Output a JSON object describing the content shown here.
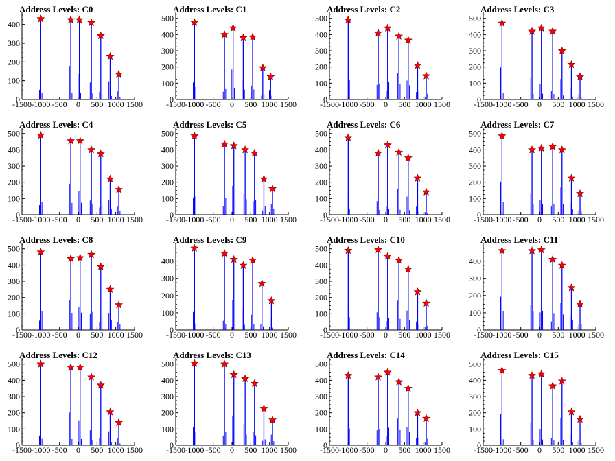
{
  "chart_data": {
    "type": "histogram",
    "xlim": [
      -1500,
      1500
    ],
    "x_ticks": [
      -1500,
      -1000,
      -500,
      0,
      500,
      1000,
      1500
    ],
    "colors": {
      "bars": "#0000ff",
      "markers": "#ff0000",
      "axis": "#000000"
    },
    "marker": "red-star",
    "panels": [
      {
        "title": "Address Levels: C0",
        "ylim": [
          0,
          450
        ],
        "y_ticks": [
          0,
          100,
          200,
          300,
          400
        ],
        "peaks_x": [
          -1000,
          -200,
          30,
          350,
          600,
          850,
          1080
        ],
        "peaks_y": [
          430,
          425,
          425,
          410,
          340,
          230,
          135
        ]
      },
      {
        "title": "Address Levels: C1",
        "ylim": [
          0,
          520
        ],
        "y_ticks": [
          0,
          100,
          200,
          300,
          400,
          500
        ],
        "peaks_x": [
          -1000,
          -200,
          30,
          300,
          550,
          820,
          1030
        ],
        "peaks_y": [
          475,
          400,
          440,
          380,
          385,
          195,
          140
        ]
      },
      {
        "title": "Address Levels: C2",
        "ylim": [
          0,
          520
        ],
        "y_ticks": [
          0,
          100,
          200,
          300,
          400,
          500
        ],
        "peaks_x": [
          -1000,
          -200,
          50,
          350,
          600,
          850,
          1080
        ],
        "peaks_y": [
          490,
          410,
          440,
          390,
          365,
          210,
          145
        ]
      },
      {
        "title": "Address Levels: C3",
        "ylim": [
          0,
          520
        ],
        "y_ticks": [
          0,
          100,
          200,
          300,
          400,
          500
        ],
        "peaks_x": [
          -1000,
          -200,
          50,
          350,
          600,
          850,
          1080
        ],
        "peaks_y": [
          470,
          420,
          440,
          420,
          300,
          215,
          140
        ]
      },
      {
        "title": "Address Levels: C4",
        "ylim": [
          0,
          520
        ],
        "y_ticks": [
          0,
          100,
          200,
          300,
          400,
          500
        ],
        "peaks_x": [
          -1000,
          -200,
          50,
          350,
          600,
          850,
          1080
        ],
        "peaks_y": [
          490,
          455,
          455,
          400,
          375,
          220,
          155
        ]
      },
      {
        "title": "Address Levels: C5",
        "ylim": [
          0,
          520
        ],
        "y_ticks": [
          0,
          100,
          200,
          300,
          400,
          500
        ],
        "peaks_x": [
          -1000,
          -200,
          50,
          350,
          600,
          850,
          1080
        ],
        "peaks_y": [
          485,
          435,
          425,
          400,
          380,
          220,
          160
        ]
      },
      {
        "title": "Address Levels: C6",
        "ylim": [
          0,
          520
        ],
        "y_ticks": [
          0,
          100,
          200,
          300,
          400,
          500
        ],
        "peaks_x": [
          -1000,
          -200,
          50,
          350,
          600,
          850,
          1080
        ],
        "peaks_y": [
          475,
          380,
          430,
          385,
          350,
          225,
          140
        ]
      },
      {
        "title": "Address Levels: C7",
        "ylim": [
          0,
          520
        ],
        "y_ticks": [
          0,
          100,
          200,
          300,
          400,
          500
        ],
        "peaks_x": [
          -1000,
          -200,
          50,
          350,
          600,
          850,
          1080
        ],
        "peaks_y": [
          485,
          400,
          410,
          420,
          400,
          225,
          130
        ]
      },
      {
        "title": "Address Levels: C8",
        "ylim": [
          0,
          520
        ],
        "y_ticks": [
          0,
          100,
          200,
          300,
          400,
          500
        ],
        "peaks_x": [
          -1000,
          -200,
          50,
          350,
          600,
          850,
          1080
        ],
        "peaks_y": [
          480,
          440,
          445,
          465,
          390,
          250,
          155
        ]
      },
      {
        "title": "Address Levels: C9",
        "ylim": [
          0,
          490
        ],
        "y_ticks": [
          0,
          100,
          200,
          300,
          400
        ],
        "peaks_x": [
          -1000,
          -200,
          50,
          300,
          550,
          800,
          1050
        ],
        "peaks_y": [
          475,
          445,
          410,
          375,
          405,
          270,
          170
        ]
      },
      {
        "title": "Address Levels: C10",
        "ylim": [
          0,
          520
        ],
        "y_ticks": [
          0,
          100,
          200,
          300,
          400,
          500
        ],
        "peaks_x": [
          -1000,
          -200,
          50,
          350,
          600,
          850,
          1080
        ],
        "peaks_y": [
          490,
          495,
          455,
          430,
          375,
          235,
          165
        ]
      },
      {
        "title": "Address Levels: C11",
        "ylim": [
          0,
          490
        ],
        "y_ticks": [
          0,
          100,
          200,
          300,
          400
        ],
        "peaks_x": [
          -1000,
          -200,
          50,
          350,
          600,
          850,
          1080
        ],
        "peaks_y": [
          460,
          460,
          465,
          410,
          375,
          245,
          150
        ]
      },
      {
        "title": "Address Levels: C12",
        "ylim": [
          0,
          520
        ],
        "y_ticks": [
          0,
          100,
          200,
          300,
          400,
          500
        ],
        "peaks_x": [
          -1000,
          -200,
          50,
          350,
          600,
          850,
          1080
        ],
        "peaks_y": [
          500,
          480,
          480,
          420,
          370,
          205,
          140
        ]
      },
      {
        "title": "Address Levels: C13",
        "ylim": [
          0,
          520
        ],
        "y_ticks": [
          0,
          100,
          200,
          300,
          400,
          500
        ],
        "peaks_x": [
          -1000,
          -200,
          50,
          350,
          600,
          850,
          1080
        ],
        "peaks_y": [
          505,
          500,
          435,
          410,
          380,
          225,
          155
        ]
      },
      {
        "title": "Address Levels: C14",
        "ylim": [
          0,
          520
        ],
        "y_ticks": [
          0,
          100,
          200,
          300,
          400,
          500
        ],
        "peaks_x": [
          -1000,
          -200,
          50,
          350,
          600,
          850,
          1080
        ],
        "peaks_y": [
          430,
          420,
          450,
          390,
          350,
          200,
          165
        ]
      },
      {
        "title": "Address Levels: C15",
        "ylim": [
          0,
          520
        ],
        "y_ticks": [
          0,
          100,
          200,
          300,
          400,
          500
        ],
        "peaks_x": [
          -1000,
          -200,
          50,
          350,
          600,
          850,
          1080
        ],
        "peaks_y": [
          460,
          430,
          440,
          365,
          395,
          205,
          160
        ]
      }
    ]
  }
}
